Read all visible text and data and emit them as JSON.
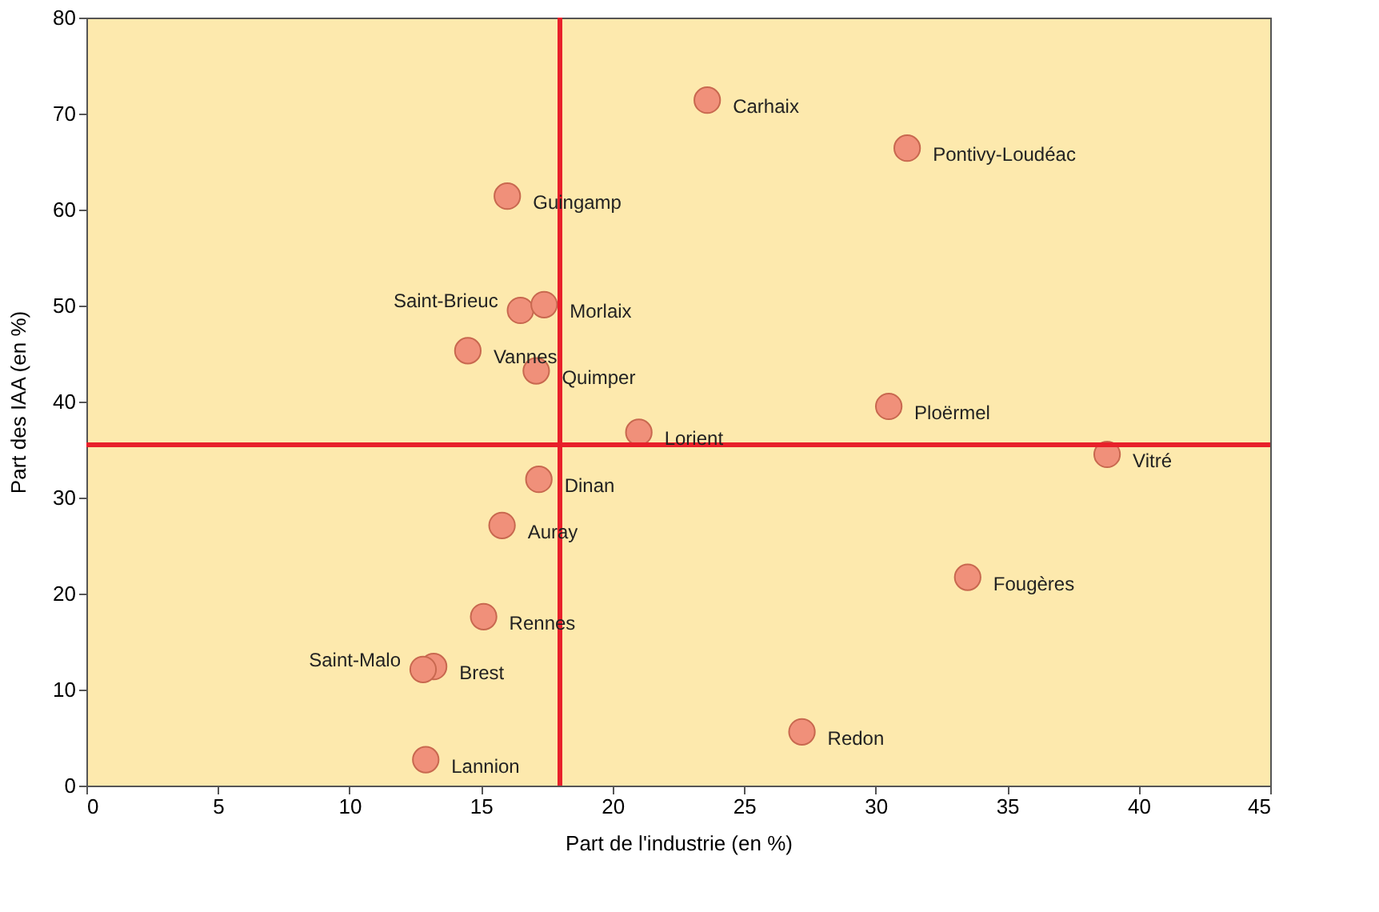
{
  "chart_data": {
    "type": "scatter",
    "xlabel": "Part de l'industrie (en %)",
    "ylabel": "Part des IAA (en %)",
    "x": [
      23.6,
      31.2,
      16.0,
      16.5,
      17.4,
      14.5,
      17.1,
      30.5,
      21.0,
      38.8,
      17.2,
      15.8,
      33.5,
      15.1,
      13.2,
      12.8,
      27.2,
      12.9
    ],
    "series": [
      {
        "color": "#f0907a",
        "values": [
          71.4,
          66.4,
          61.4,
          49.5,
          50.1,
          45.3,
          43.2,
          39.5,
          36.8,
          34.5,
          31.9,
          27.1,
          21.7,
          17.6,
          12.4,
          12.1,
          5.6,
          2.7
        ]
      }
    ],
    "annotations": [
      {
        "text": "Carhaix",
        "x": 23.6,
        "y": 71.4
      },
      {
        "text": "Pontivy-Loudéac",
        "x": 31.2,
        "y": 66.4
      },
      {
        "text": "Guingamp",
        "x": 16.0,
        "y": 61.4
      },
      {
        "text": "Saint-Brieuc",
        "x": 16.5,
        "y": 49.5
      },
      {
        "text": "Morlaix",
        "x": 17.4,
        "y": 50.1
      },
      {
        "text": "Vannes",
        "x": 14.5,
        "y": 45.3
      },
      {
        "text": "Quimper",
        "x": 17.1,
        "y": 43.2
      },
      {
        "text": "Ploërmel",
        "x": 30.5,
        "y": 39.5
      },
      {
        "text": "Lorient",
        "x": 21.0,
        "y": 36.8
      },
      {
        "text": "Vitré",
        "x": 38.8,
        "y": 34.5
      },
      {
        "text": "Dinan",
        "x": 17.2,
        "y": 31.9
      },
      {
        "text": "Auray",
        "x": 15.8,
        "y": 27.1
      },
      {
        "text": "Fougères",
        "x": 33.5,
        "y": 21.7
      },
      {
        "text": "Rennes",
        "x": 15.1,
        "y": 17.6
      },
      {
        "text": "Brest",
        "x": 13.2,
        "y": 12.4
      },
      {
        "text": "Saint-Malo",
        "x": 12.8,
        "y": 12.1
      },
      {
        "text": "Redon",
        "x": 27.2,
        "y": 5.6
      },
      {
        "text": "Lannion",
        "x": 12.9,
        "y": 2.7
      }
    ],
    "xlim": [
      0,
      45
    ],
    "xticks": [
      0,
      5,
      10,
      15,
      20,
      25,
      30,
      35,
      40,
      45
    ],
    "ylim": [
      0,
      80
    ],
    "yticks": [
      0,
      10,
      20,
      30,
      40,
      50,
      60,
      70,
      80
    ],
    "ref_lines": [
      {
        "axis": "x",
        "value": 18,
        "color": "#e8202a"
      },
      {
        "axis": "y",
        "value": 35.5,
        "color": "#e8202a"
      }
    ],
    "grid": false,
    "marker": "circle"
  }
}
